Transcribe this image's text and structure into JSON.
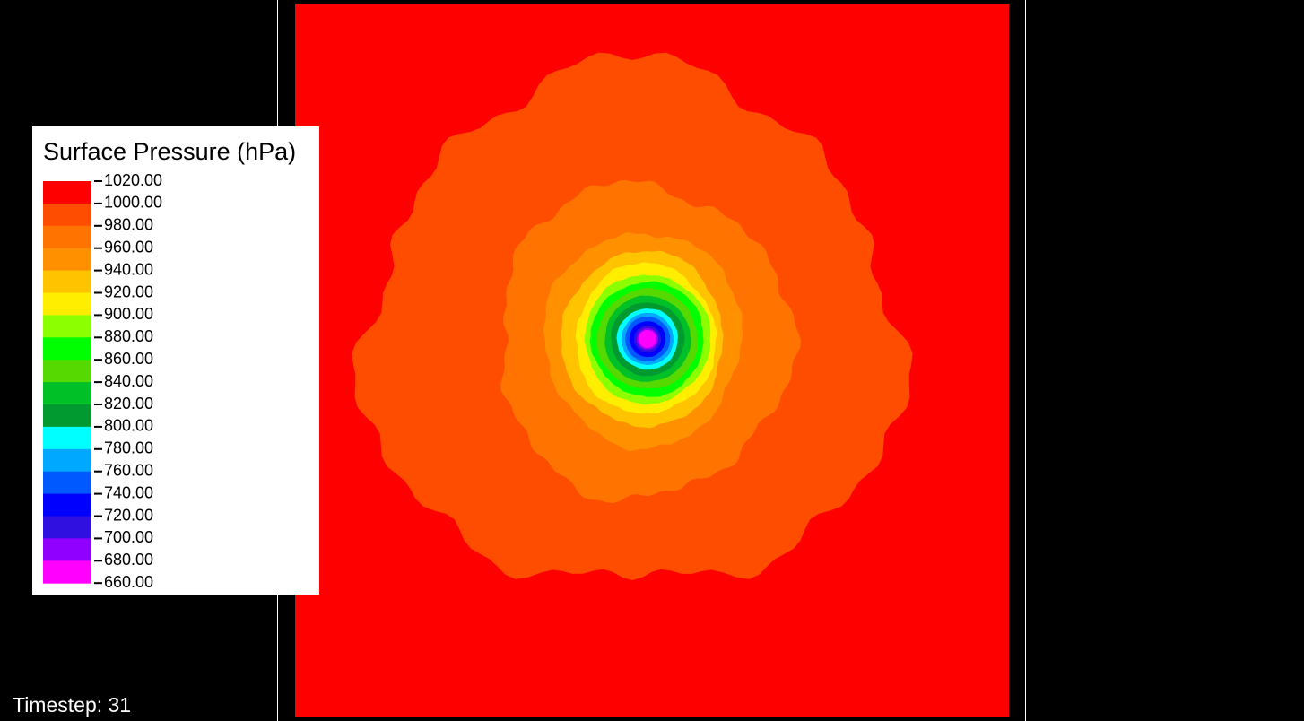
{
  "legend": {
    "title": "Surface Pressure (hPa)",
    "labels": [
      "1020.00",
      "1000.00",
      "980.00",
      "960.00",
      "940.00",
      "920.00",
      "900.00",
      "880.00",
      "860.00",
      "840.00",
      "820.00",
      "800.00",
      "780.00",
      "760.00",
      "740.00",
      "720.00",
      "700.00",
      "680.00",
      "660.00"
    ],
    "colors": [
      "#ff0000",
      "#ff4d00",
      "#ff7300",
      "#ff9100",
      "#ffc300",
      "#ffee00",
      "#8cff00",
      "#00ff00",
      "#55d900",
      "#00c028",
      "#009a30",
      "#00ffff",
      "#00a8ff",
      "#0058ff",
      "#0000ff",
      "#3010e0",
      "#9000ff",
      "#ff00ff"
    ]
  },
  "timestep": "Timestep: 31"
}
